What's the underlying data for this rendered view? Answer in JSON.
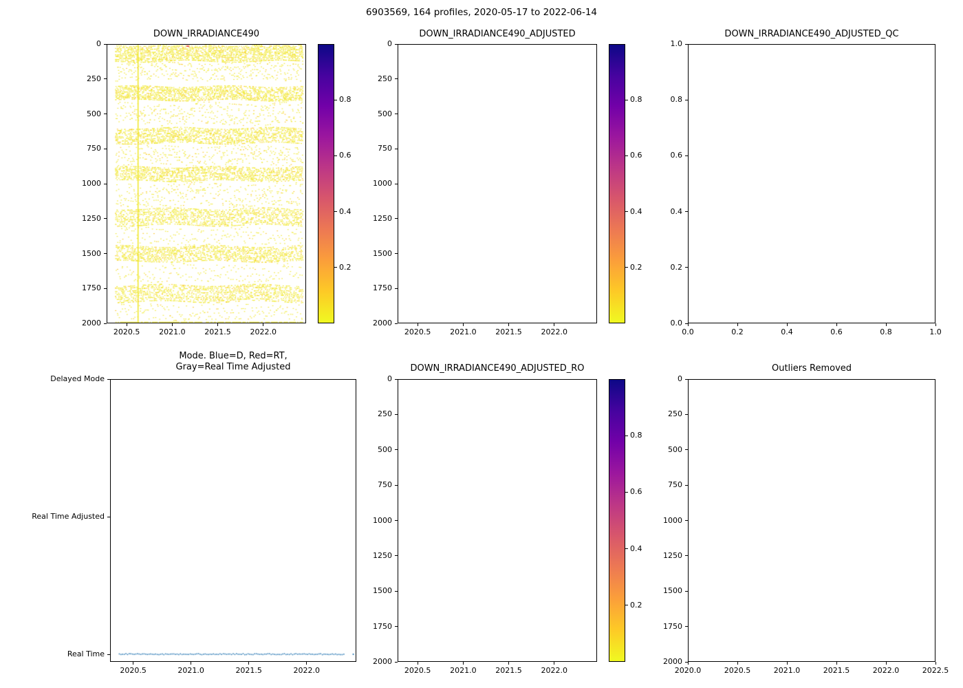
{
  "figure_title": "6903569, 164 profiles, 2020-05-17 to 2022-06-14",
  "colorbar_colors_top_to_bottom": [
    "#0d0887",
    "#46039f",
    "#7201a8",
    "#9c179e",
    "#bd3786",
    "#d8576b",
    "#ed7953",
    "#fb9f3a",
    "#fdca26",
    "#f0f921"
  ],
  "chart_data": [
    {
      "type": "scatter",
      "title": "DOWN_IRRADIANCE490",
      "has_data": true,
      "xlim": [
        2020.28,
        2022.47
      ],
      "ylim_bottom_top": [
        2000,
        0
      ],
      "x_ticks": [
        "2020.5",
        "2021.0",
        "2021.5",
        "2022.0"
      ],
      "x_tick_vals": [
        2020.5,
        2021.0,
        2021.5,
        2022.0
      ],
      "y_ticks": [
        "0",
        "250",
        "500",
        "750",
        "1000",
        "1250",
        "1500",
        "1750",
        "2000"
      ],
      "y_tick_vals": [
        0,
        250,
        500,
        750,
        1000,
        1250,
        1500,
        1750,
        2000
      ],
      "colorbar_ticks": [
        "0.2",
        "0.4",
        "0.6",
        "0.8"
      ],
      "colorbar_tick_vals": [
        0.2,
        0.4,
        0.6,
        0.8
      ],
      "point_color": "#f0e832",
      "point_color_alt": "#fdc427",
      "red_mark_color": "#e8413c",
      "n_profiles": 164,
      "profile_x_range": [
        2020.37,
        2022.43
      ],
      "vline_x": 2020.62,
      "bottom_line_depth": 2000,
      "red_marks": [
        {
          "x": 2021.17,
          "depth": 6
        }
      ],
      "dense_bands": [
        {
          "y0": 2,
          "y1": 115,
          "pts": 12
        },
        {
          "y0": 130,
          "y1": 250,
          "pts": 2
        },
        {
          "y0": 300,
          "y1": 395,
          "pts": 9
        },
        {
          "y0": 420,
          "y1": 570,
          "pts": 2
        },
        {
          "y0": 600,
          "y1": 705,
          "pts": 9
        },
        {
          "y0": 730,
          "y1": 860,
          "pts": 2
        },
        {
          "y0": 880,
          "y1": 975,
          "pts": 8
        },
        {
          "y0": 1000,
          "y1": 1160,
          "pts": 2
        },
        {
          "y0": 1180,
          "y1": 1295,
          "pts": 8
        },
        {
          "y0": 1320,
          "y1": 1430,
          "pts": 1
        },
        {
          "y0": 1450,
          "y1": 1555,
          "pts": 8
        },
        {
          "y0": 1580,
          "y1": 1700,
          "pts": 1
        },
        {
          "y0": 1730,
          "y1": 1845,
          "pts": 8
        },
        {
          "y0": 1870,
          "y1": 1975,
          "pts": 1
        }
      ]
    },
    {
      "type": "scatter",
      "title": "DOWN_IRRADIANCE490_ADJUSTED",
      "has_data": false,
      "xlim": [
        2020.28,
        2022.47
      ],
      "ylim_bottom_top": [
        2000,
        0
      ],
      "x_ticks": [
        "2020.5",
        "2021.0",
        "2021.5",
        "2022.0"
      ],
      "x_tick_vals": [
        2020.5,
        2021.0,
        2021.5,
        2022.0
      ],
      "y_ticks": [
        "0",
        "250",
        "500",
        "750",
        "1000",
        "1250",
        "1500",
        "1750",
        "2000"
      ],
      "y_tick_vals": [
        0,
        250,
        500,
        750,
        1000,
        1250,
        1500,
        1750,
        2000
      ],
      "colorbar_ticks": [
        "0.2",
        "0.4",
        "0.6",
        "0.8"
      ],
      "colorbar_tick_vals": [
        0.2,
        0.4,
        0.6,
        0.8
      ]
    },
    {
      "type": "scatter",
      "title": "DOWN_IRRADIANCE490_ADJUSTED_QC",
      "has_data": false,
      "xlim": [
        0,
        1
      ],
      "ylim_bottom_top": [
        0,
        1
      ],
      "x_ticks": [
        "0.0",
        "0.2",
        "0.4",
        "0.6",
        "0.8",
        "1.0"
      ],
      "x_tick_vals": [
        0,
        0.2,
        0.4,
        0.6,
        0.8,
        1.0
      ],
      "y_ticks": [
        "0.0",
        "0.2",
        "0.4",
        "0.6",
        "0.8",
        "1.0"
      ],
      "y_tick_vals": [
        0,
        0.2,
        0.4,
        0.6,
        0.8,
        1.0
      ]
    },
    {
      "type": "scatter",
      "title_lines": [
        "Mode. Blue=D, Red=RT,",
        "Gray=Real Time Adjusted"
      ],
      "has_data": true,
      "xlim": [
        2020.3,
        2022.43
      ],
      "x_ticks": [
        "2020.5",
        "2021.0",
        "2021.5",
        "2022.0"
      ],
      "x_tick_vals": [
        2020.5,
        2021.0,
        2021.5,
        2022.0
      ],
      "y_categories": [
        "Delayed Mode",
        "Real Time Adjusted",
        "Real Time"
      ],
      "series": {
        "name": "profile mode",
        "mode_value": "Real Time",
        "color": "#2d7bb5",
        "x_start": 2020.37,
        "x_end": 2022.33,
        "x_isolated_point": 2022.41
      }
    },
    {
      "type": "scatter",
      "title": "DOWN_IRRADIANCE490_ADJUSTED_RO",
      "has_data": false,
      "xlim": [
        2020.28,
        2022.47
      ],
      "ylim_bottom_top": [
        2000,
        0
      ],
      "x_ticks": [
        "2020.5",
        "2021.0",
        "2021.5",
        "2022.0"
      ],
      "x_tick_vals": [
        2020.5,
        2021.0,
        2021.5,
        2022.0
      ],
      "y_ticks": [
        "0",
        "250",
        "500",
        "750",
        "1000",
        "1250",
        "1500",
        "1750",
        "2000"
      ],
      "y_tick_vals": [
        0,
        250,
        500,
        750,
        1000,
        1250,
        1500,
        1750,
        2000
      ],
      "colorbar_ticks": [
        "0.2",
        "0.4",
        "0.6",
        "0.8"
      ],
      "colorbar_tick_vals": [
        0.2,
        0.4,
        0.6,
        0.8
      ]
    },
    {
      "type": "scatter",
      "title": "Outliers Removed",
      "has_data": false,
      "xlim": [
        2020.0,
        2022.5
      ],
      "ylim_bottom_top": [
        2000,
        0
      ],
      "x_ticks": [
        "2020.0",
        "2020.5",
        "2021.0",
        "2021.5",
        "2022.0",
        "2022.5"
      ],
      "x_tick_vals": [
        2020.0,
        2020.5,
        2021.0,
        2021.5,
        2022.0,
        2022.5
      ],
      "y_ticks": [
        "0",
        "250",
        "500",
        "750",
        "1000",
        "1250",
        "1500",
        "1750",
        "2000"
      ],
      "y_tick_vals": [
        0,
        250,
        500,
        750,
        1000,
        1250,
        1500,
        1750,
        2000
      ]
    }
  ]
}
